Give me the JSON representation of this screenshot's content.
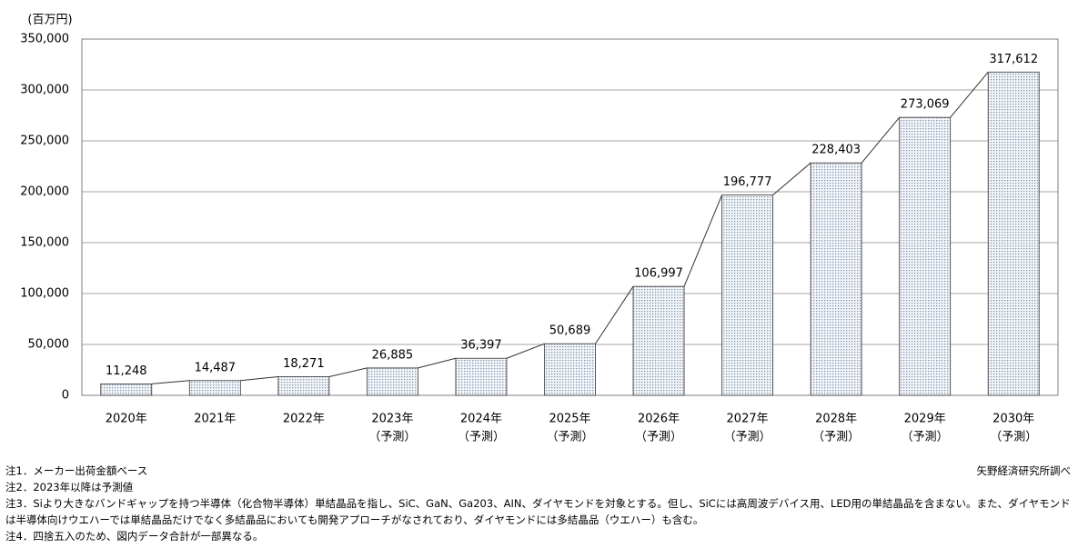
{
  "chart_data": {
    "type": "bar",
    "unit_label": "(百万円)",
    "categories": [
      [
        "2020年"
      ],
      [
        "2021年"
      ],
      [
        "2022年"
      ],
      [
        "2023年",
        "（予測）"
      ],
      [
        "2024年",
        "（予測）"
      ],
      [
        "2025年",
        "（予測）"
      ],
      [
        "2026年",
        "（予測）"
      ],
      [
        "2027年",
        "（予測）"
      ],
      [
        "2028年",
        "（予測）"
      ],
      [
        "2029年",
        "（予測）"
      ],
      [
        "2030年",
        "（予測）"
      ]
    ],
    "values": [
      11248,
      14487,
      18271,
      26885,
      36397,
      50689,
      106997,
      196777,
      228403,
      273069,
      317612
    ],
    "value_labels": [
      "11,248",
      "14,487",
      "18,271",
      "26,885",
      "36,397",
      "50,689",
      "106,997",
      "196,777",
      "228,403",
      "273,069",
      "317,612"
    ],
    "color": "#7f93ab",
    "ylim": [
      0,
      350000
    ],
    "yticks": [
      0,
      {
        "value": 50000,
        "label": "50,000"
      },
      {
        "value": 100000,
        "label": "100,000"
      },
      {
        "value": 150000,
        "label": "150,000"
      },
      {
        "value": 200000,
        "label": "200,000"
      },
      {
        "value": 250000,
        "label": "250,000"
      },
      {
        "value": 300000,
        "label": "300,000"
      },
      {
        "value": 350000,
        "label": "350,000"
      }
    ],
    "grid": true,
    "connector_lines": true,
    "notes": [
      "注1．メーカー出荷金額ベース",
      "注2．2023年以降は予測値",
      "注3．Siより大きなバンドギャップを持つ半導体（化合物半導体）単結晶品を指し、SiC、GaN、Ga203、AIN、ダイヤモンドを対象とする。但し、SiCには高周波デバイス用、LED用の単結晶品を含まない。また、ダイヤモンドは半導体向けウエハーでは単結晶品だけでなく多結晶品においても開発アプローチがなされており、ダイヤモンドには多結晶品（ウエハー）も含む。",
      "注4．四捨五入のため、図内データ合計が一部異なる。"
    ],
    "source": "矢野経済研究所調べ"
  }
}
